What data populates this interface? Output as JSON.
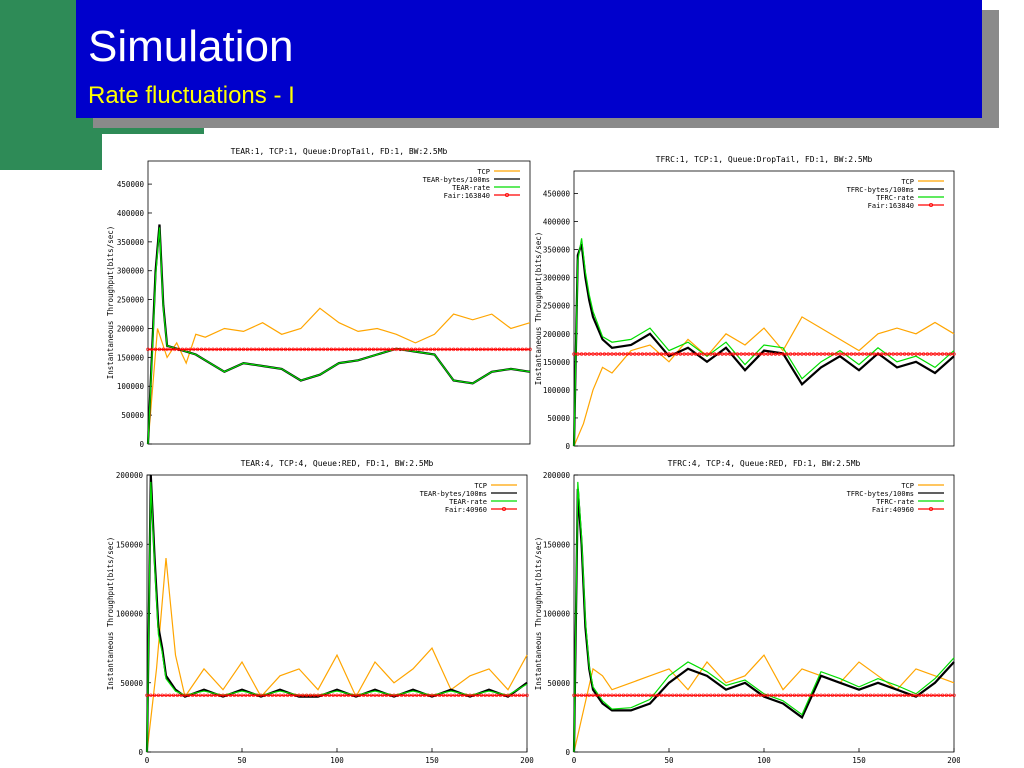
{
  "slide": {
    "title": "Simulation",
    "subtitle": "Rate fluctuations - I"
  },
  "colors": {
    "tcp": "#ffa500",
    "bytes": "#000000",
    "rate": "#00dd00",
    "fair": "#ff0000",
    "title_bg": "#0000cc",
    "accent": "#2e8b57"
  },
  "chart_data": [
    {
      "type": "line",
      "title": "TEAR:1, TCP:1, Queue:DropTail, FD:1, BW:2.5Mb",
      "ylabel": "Instantaneous Throughput(bits/sec)",
      "xlim": [
        0,
        200
      ],
      "ylim": [
        0,
        490000
      ],
      "yticks": [
        0,
        50000,
        100000,
        150000,
        200000,
        250000,
        300000,
        350000,
        400000,
        450000
      ],
      "xticks": [],
      "legend": "top-right",
      "series": [
        {
          "name": "TCP",
          "color": "#ffa500",
          "x": [
            0,
            5,
            10,
            15,
            20,
            25,
            30,
            40,
            50,
            60,
            70,
            80,
            90,
            100,
            110,
            120,
            130,
            140,
            150,
            160,
            170,
            180,
            190,
            200
          ],
          "values": [
            0,
            200000,
            150000,
            175000,
            140000,
            190000,
            185000,
            200000,
            195000,
            210000,
            190000,
            200000,
            235000,
            210000,
            195000,
            200000,
            190000,
            175000,
            190000,
            225000,
            215000,
            225000,
            200000,
            210000
          ]
        },
        {
          "name": "TEAR-bytes/100ms",
          "color": "#000000",
          "x": [
            0,
            2,
            4,
            6,
            8,
            10,
            15,
            20,
            25,
            30,
            40,
            50,
            60,
            70,
            80,
            90,
            100,
            110,
            120,
            130,
            140,
            150,
            160,
            170,
            180,
            190,
            200
          ],
          "values": [
            0,
            150000,
            300000,
            380000,
            240000,
            170000,
            165000,
            160000,
            155000,
            145000,
            125000,
            140000,
            135000,
            130000,
            110000,
            120000,
            140000,
            145000,
            155000,
            165000,
            160000,
            155000,
            110000,
            105000,
            125000,
            130000,
            125000
          ]
        },
        {
          "name": "TEAR-rate",
          "color": "#00dd00",
          "x": [
            0,
            2,
            4,
            6,
            8,
            10,
            15,
            20,
            25,
            30,
            40,
            50,
            60,
            70,
            80,
            90,
            100,
            110,
            120,
            130,
            140,
            150,
            160,
            170,
            180,
            190,
            200
          ],
          "values": [
            0,
            140000,
            290000,
            375000,
            235000,
            170000,
            165000,
            160000,
            155000,
            145000,
            125000,
            140000,
            135000,
            130000,
            110000,
            120000,
            140000,
            145000,
            155000,
            165000,
            160000,
            155000,
            110000,
            105000,
            125000,
            130000,
            125000
          ]
        },
        {
          "name": "Fair:163840",
          "color": "#ff0000",
          "x": [
            0,
            200
          ],
          "values": [
            163840,
            163840
          ]
        }
      ]
    },
    {
      "type": "line",
      "title": "TFRC:1, TCP:1, Queue:DropTail, FD:1, BW:2.5Mb",
      "ylabel": "Instantaneous Throughput(bits/sec)",
      "xlim": [
        0,
        200
      ],
      "ylim": [
        0,
        490000
      ],
      "yticks": [
        0,
        50000,
        100000,
        150000,
        200000,
        250000,
        300000,
        350000,
        400000,
        450000
      ],
      "xticks": [],
      "legend": "top-right",
      "series": [
        {
          "name": "TCP",
          "color": "#ffa500",
          "x": [
            0,
            5,
            10,
            15,
            20,
            25,
            30,
            40,
            50,
            60,
            70,
            80,
            90,
            100,
            110,
            120,
            130,
            140,
            150,
            160,
            170,
            180,
            190,
            200
          ],
          "values": [
            0,
            40000,
            100000,
            140000,
            130000,
            150000,
            170000,
            180000,
            150000,
            190000,
            160000,
            200000,
            180000,
            210000,
            170000,
            230000,
            210000,
            190000,
            170000,
            200000,
            210000,
            200000,
            220000,
            200000
          ]
        },
        {
          "name": "TFRC-bytes/100ms",
          "color": "#000000",
          "x": [
            0,
            2,
            4,
            6,
            8,
            10,
            15,
            20,
            30,
            40,
            50,
            60,
            70,
            80,
            90,
            100,
            110,
            120,
            130,
            140,
            150,
            160,
            170,
            180,
            190,
            200
          ],
          "values": [
            0,
            340000,
            360000,
            300000,
            260000,
            230000,
            190000,
            175000,
            180000,
            200000,
            160000,
            175000,
            150000,
            175000,
            135000,
            170000,
            165000,
            110000,
            140000,
            160000,
            135000,
            165000,
            140000,
            150000,
            130000,
            160000
          ]
        },
        {
          "name": "TFRC-rate",
          "color": "#00dd00",
          "x": [
            0,
            2,
            4,
            6,
            8,
            10,
            15,
            20,
            30,
            40,
            50,
            60,
            70,
            80,
            90,
            100,
            110,
            120,
            130,
            140,
            150,
            160,
            170,
            180,
            190,
            200
          ],
          "values": [
            0,
            330000,
            370000,
            310000,
            270000,
            240000,
            195000,
            185000,
            190000,
            210000,
            170000,
            185000,
            160000,
            185000,
            145000,
            180000,
            175000,
            120000,
            150000,
            170000,
            145000,
            175000,
            150000,
            160000,
            140000,
            170000
          ]
        },
        {
          "name": "Fair:163840",
          "color": "#ff0000",
          "x": [
            0,
            200
          ],
          "values": [
            163840,
            163840
          ]
        }
      ]
    },
    {
      "type": "line",
      "title": "TEAR:4, TCP:4, Queue:RED, FD:1, BW:2.5Mb",
      "ylabel": "Instantaneous Throughput(bits/sec)",
      "xlim": [
        0,
        200
      ],
      "ylim": [
        0,
        200000
      ],
      "yticks": [
        0,
        50000,
        100000,
        150000,
        200000
      ],
      "xticks": [
        0,
        50,
        100,
        150,
        200
      ],
      "legend": "top-right",
      "series": [
        {
          "name": "TCP",
          "color": "#ffa500",
          "x": [
            0,
            5,
            10,
            15,
            20,
            30,
            40,
            50,
            60,
            70,
            80,
            90,
            100,
            110,
            120,
            130,
            140,
            150,
            160,
            170,
            180,
            190,
            200
          ],
          "values": [
            0,
            60000,
            140000,
            70000,
            40000,
            60000,
            45000,
            65000,
            40000,
            55000,
            60000,
            45000,
            70000,
            40000,
            65000,
            50000,
            60000,
            75000,
            45000,
            55000,
            60000,
            45000,
            70000
          ]
        },
        {
          "name": "TEAR-bytes/100ms",
          "color": "#000000",
          "x": [
            0,
            2,
            4,
            6,
            8,
            10,
            15,
            20,
            30,
            40,
            50,
            60,
            70,
            80,
            90,
            100,
            110,
            120,
            130,
            140,
            150,
            160,
            170,
            180,
            190,
            200
          ],
          "values": [
            0,
            200000,
            140000,
            90000,
            75000,
            55000,
            45000,
            40000,
            45000,
            40000,
            45000,
            40000,
            45000,
            40000,
            40000,
            45000,
            40000,
            45000,
            40000,
            45000,
            40000,
            45000,
            40000,
            45000,
            40000,
            50000
          ]
        },
        {
          "name": "TEAR-rate",
          "color": "#00dd00",
          "x": [
            0,
            2,
            4,
            6,
            8,
            10,
            15,
            20,
            30,
            40,
            50,
            60,
            70,
            80,
            90,
            100,
            110,
            120,
            130,
            140,
            150,
            160,
            170,
            180,
            190,
            200
          ],
          "values": [
            0,
            195000,
            135000,
            85000,
            72000,
            53000,
            44000,
            41000,
            44000,
            41000,
            44000,
            41000,
            44000,
            41000,
            41000,
            44000,
            41000,
            44000,
            41000,
            44000,
            41000,
            44000,
            41000,
            44000,
            41000,
            49000
          ]
        },
        {
          "name": "Fair:40960",
          "color": "#ff0000",
          "x": [
            0,
            200
          ],
          "values": [
            40960,
            40960
          ]
        }
      ]
    },
    {
      "type": "line",
      "title": "TFRC:4, TCP:4, Queue:RED, FD:1, BW:2.5Mb",
      "ylabel": "Instantaneous Throughput(bits/sec)",
      "xlim": [
        0,
        200
      ],
      "ylim": [
        0,
        200000
      ],
      "yticks": [
        0,
        50000,
        100000,
        150000,
        200000
      ],
      "xticks": [
        0,
        50,
        100,
        150,
        200
      ],
      "legend": "top-right",
      "series": [
        {
          "name": "TCP",
          "color": "#ffa500",
          "x": [
            0,
            5,
            10,
            15,
            20,
            30,
            40,
            50,
            60,
            70,
            80,
            90,
            100,
            110,
            120,
            130,
            140,
            150,
            160,
            170,
            180,
            190,
            200
          ],
          "values": [
            0,
            30000,
            60000,
            55000,
            45000,
            50000,
            55000,
            60000,
            45000,
            65000,
            50000,
            55000,
            70000,
            45000,
            60000,
            55000,
            50000,
            65000,
            55000,
            45000,
            60000,
            55000,
            50000
          ]
        },
        {
          "name": "TFRC-bytes/100ms",
          "color": "#000000",
          "x": [
            0,
            2,
            4,
            6,
            8,
            10,
            15,
            20,
            30,
            40,
            50,
            60,
            70,
            80,
            90,
            100,
            110,
            120,
            130,
            140,
            150,
            160,
            170,
            180,
            190,
            200
          ],
          "values": [
            0,
            190000,
            150000,
            90000,
            60000,
            45000,
            35000,
            30000,
            30000,
            35000,
            50000,
            60000,
            55000,
            45000,
            50000,
            40000,
            35000,
            25000,
            55000,
            50000,
            45000,
            50000,
            45000,
            40000,
            50000,
            65000
          ]
        },
        {
          "name": "TFRC-rate",
          "color": "#00dd00",
          "x": [
            0,
            2,
            4,
            6,
            8,
            10,
            15,
            20,
            30,
            40,
            50,
            60,
            70,
            80,
            90,
            100,
            110,
            120,
            130,
            140,
            150,
            160,
            170,
            180,
            190,
            200
          ],
          "values": [
            0,
            195000,
            155000,
            95000,
            62000,
            47000,
            37000,
            31000,
            32000,
            38000,
            55000,
            65000,
            58000,
            48000,
            52000,
            42000,
            37000,
            27000,
            58000,
            53000,
            47000,
            53000,
            48000,
            42000,
            53000,
            68000
          ]
        },
        {
          "name": "Fair:40960",
          "color": "#ff0000",
          "x": [
            0,
            200
          ],
          "values": [
            40960,
            40960
          ]
        }
      ]
    }
  ]
}
